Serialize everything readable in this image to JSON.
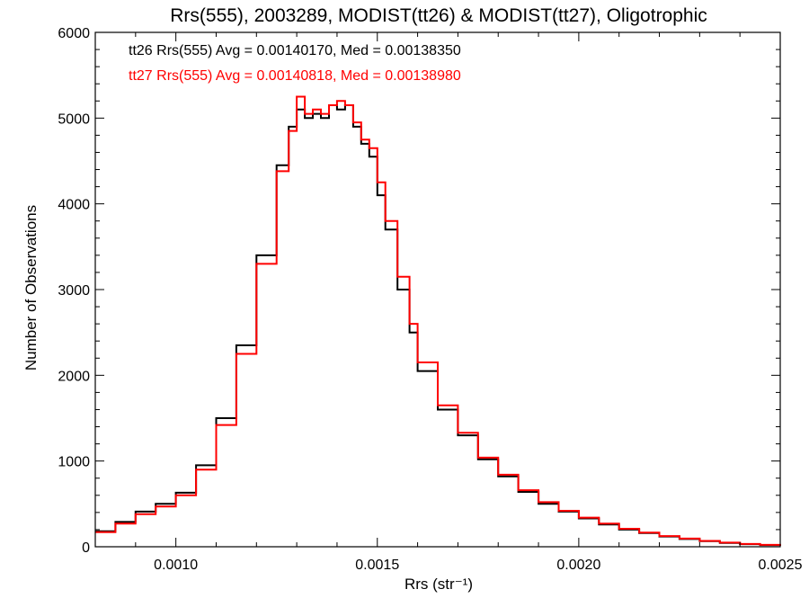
{
  "chart_data": {
    "type": "line",
    "title": "Rrs(555), 2003289, MODIST(tt26) & MODIST(tt27), Oligotrophic",
    "xlabel": "Rrs (str⁻¹)",
    "ylabel": "Number of Observations",
    "xlim": [
      0.0008,
      0.0025
    ],
    "ylim": [
      0,
      6000
    ],
    "xticks": [
      0.001,
      0.0015,
      0.002,
      0.0025
    ],
    "xtick_labels": [
      "0.0010",
      "0.0015",
      "0.0020",
      "0.0025"
    ],
    "yticks": [
      0,
      1000,
      2000,
      3000,
      4000,
      5000,
      6000
    ],
    "ytick_labels": [
      "0",
      "1000",
      "2000",
      "3000",
      "4000",
      "5000",
      "6000"
    ],
    "step": true,
    "legend_position": "top-left",
    "series": [
      {
        "name": "tt26",
        "label": "tt26 Rrs(555) Avg = 0.00140170, Med = 0.00138350",
        "color": "#000000",
        "x": [
          0.0008,
          0.00085,
          0.0009,
          0.00095,
          0.001,
          0.00105,
          0.0011,
          0.00115,
          0.0012,
          0.00125,
          0.00128,
          0.0013,
          0.00132,
          0.00134,
          0.00136,
          0.00138,
          0.0014,
          0.00142,
          0.00144,
          0.00146,
          0.00148,
          0.0015,
          0.00152,
          0.00155,
          0.00158,
          0.0016,
          0.00165,
          0.0017,
          0.00175,
          0.0018,
          0.00185,
          0.0019,
          0.00195,
          0.002,
          0.00205,
          0.0021,
          0.00215,
          0.0022,
          0.00225,
          0.0023,
          0.00235,
          0.0024,
          0.00245,
          0.0025
        ],
        "y": [
          180,
          290,
          410,
          500,
          630,
          950,
          1500,
          2350,
          3400,
          4450,
          4900,
          5100,
          5000,
          5050,
          5000,
          5150,
          5100,
          5150,
          4900,
          4700,
          4550,
          4100,
          3700,
          3000,
          2500,
          2050,
          1600,
          1300,
          1020,
          820,
          640,
          500,
          410,
          330,
          260,
          200,
          160,
          120,
          90,
          65,
          45,
          30,
          20,
          10
        ]
      },
      {
        "name": "tt27",
        "label": "tt27 Rrs(555) Avg = 0.00140818, Med = 0.00138980",
        "color": "#ff0000",
        "x": [
          0.0008,
          0.00085,
          0.0009,
          0.00095,
          0.001,
          0.00105,
          0.0011,
          0.00115,
          0.0012,
          0.00125,
          0.00128,
          0.0013,
          0.00132,
          0.00134,
          0.00136,
          0.00138,
          0.0014,
          0.00142,
          0.00144,
          0.00146,
          0.00148,
          0.0015,
          0.00152,
          0.00155,
          0.00158,
          0.0016,
          0.00165,
          0.0017,
          0.00175,
          0.0018,
          0.00185,
          0.0019,
          0.00195,
          0.002,
          0.00205,
          0.0021,
          0.00215,
          0.0022,
          0.00225,
          0.0023,
          0.00235,
          0.0024,
          0.00245,
          0.0025
        ],
        "y": [
          170,
          270,
          380,
          470,
          600,
          900,
          1420,
          2250,
          3300,
          4380,
          4850,
          5250,
          5050,
          5100,
          5050,
          5150,
          5200,
          5150,
          4950,
          4750,
          4650,
          4250,
          3800,
          3150,
          2600,
          2150,
          1650,
          1330,
          1040,
          840,
          660,
          520,
          420,
          340,
          270,
          210,
          165,
          125,
          95,
          68,
          48,
          32,
          22,
          12
        ]
      }
    ]
  }
}
